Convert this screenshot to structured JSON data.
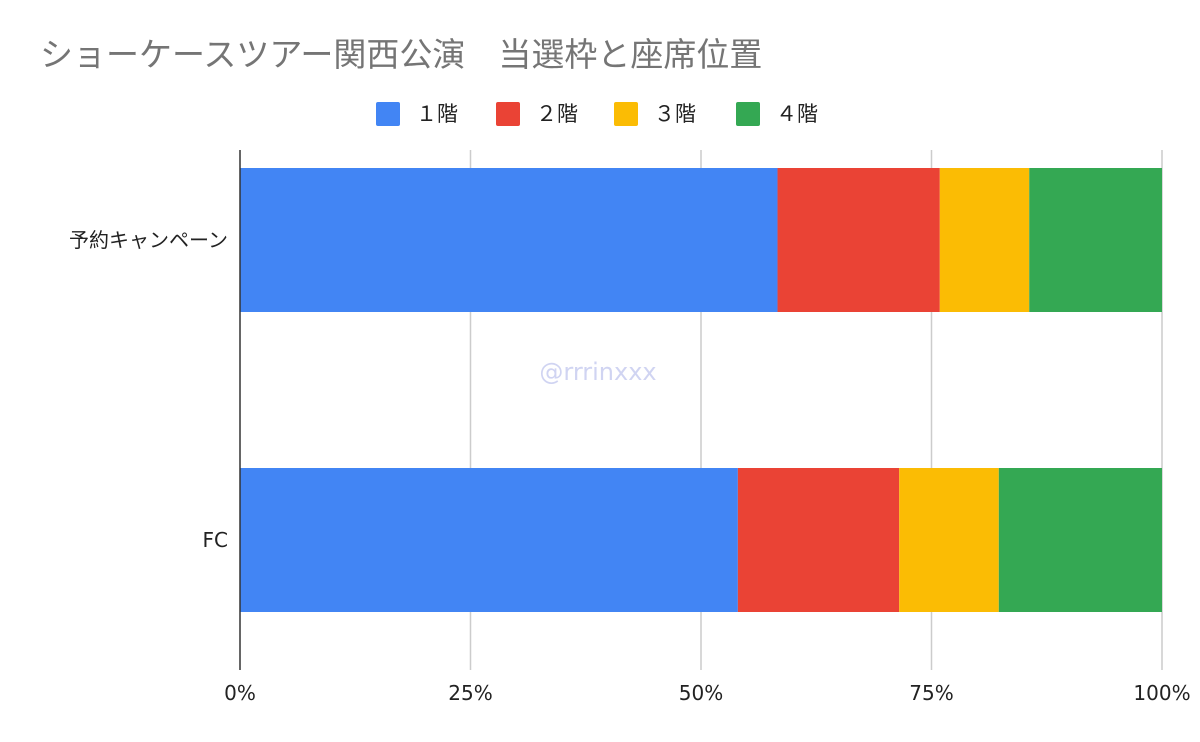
{
  "chart_data": {
    "type": "bar",
    "orientation": "horizontal",
    "stacked": "percent",
    "title": "ショーケースツアー関西公演　当選枠と座席位置",
    "xlabel": "",
    "ylabel": "",
    "categories": [
      "予約キャンペーン",
      "FC"
    ],
    "series": [
      {
        "name": "１階",
        "color": "#4285f4",
        "values": [
          58.3,
          54.0
        ]
      },
      {
        "name": "２階",
        "color": "#ea4335",
        "values": [
          17.6,
          17.5
        ]
      },
      {
        "name": "３階",
        "color": "#fbbc04",
        "values": [
          9.7,
          10.8
        ]
      },
      {
        "name": "４階",
        "color": "#34a853",
        "values": [
          14.4,
          17.7
        ]
      }
    ],
    "xlim": [
      0,
      100
    ],
    "xticks": [
      0,
      25,
      50,
      75,
      100
    ],
    "xtick_labels": [
      "0%",
      "25%",
      "50%",
      "75%",
      "100%"
    ],
    "grid": "vertical",
    "legend_position": "top",
    "watermark": "@rrrinxxx"
  }
}
